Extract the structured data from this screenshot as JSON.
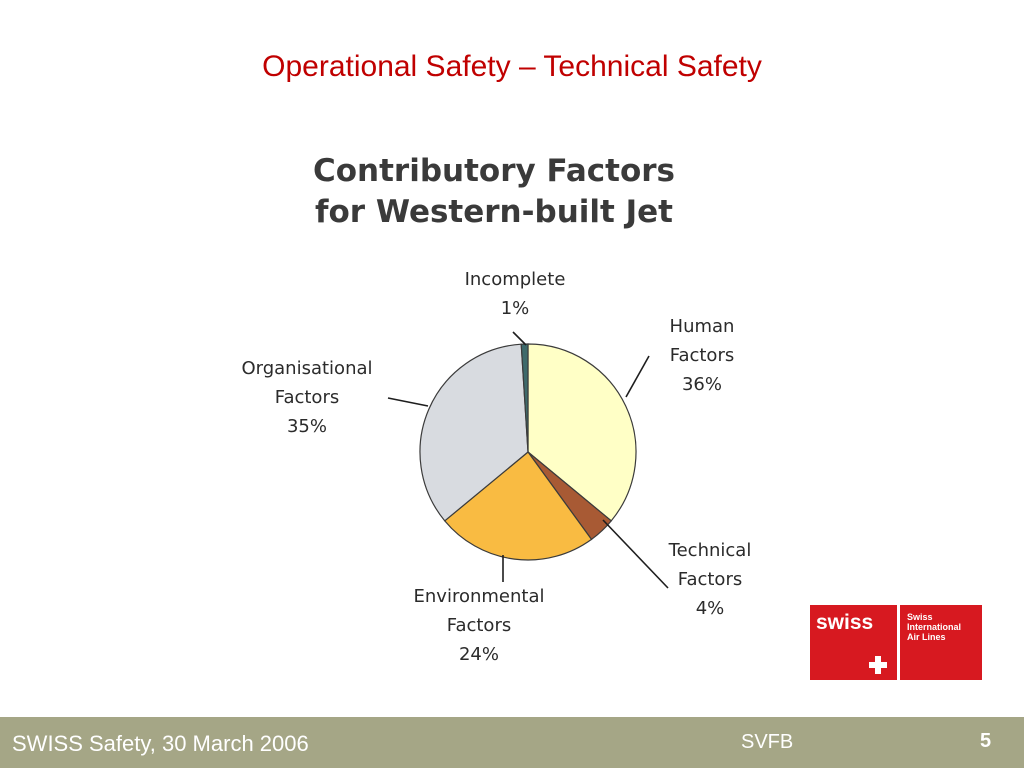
{
  "slide": {
    "title": "Operational Safety – Technical Safety"
  },
  "chart_data": {
    "type": "pie",
    "title_lines": [
      "Contributory Factors",
      "for Western-built Jet"
    ],
    "slices": [
      {
        "label_lines": [
          "Human",
          "Factors",
          "36%"
        ],
        "value": 36,
        "color": "#ffffc6"
      },
      {
        "label_lines": [
          "Technical",
          "Factors",
          "4%"
        ],
        "value": 4,
        "color": "#a85a34"
      },
      {
        "label_lines": [
          "Environmental",
          "Factors",
          "24%"
        ],
        "value": 24,
        "color": "#f9bb42"
      },
      {
        "label_lines": [
          "Organisational",
          "Factors",
          "35%"
        ],
        "value": 35,
        "color": "#d8dbe0"
      },
      {
        "label_lines": [
          "Incomplete",
          "1%"
        ],
        "value": 1,
        "color": "#3e6a6b"
      }
    ]
  },
  "logo": {
    "wordmark": "swiss",
    "lines": [
      "Swiss",
      "International",
      "Air Lines"
    ]
  },
  "footer": {
    "left": "SWISS Safety, 30 March 2006",
    "center": "SVFB",
    "page": "5"
  }
}
